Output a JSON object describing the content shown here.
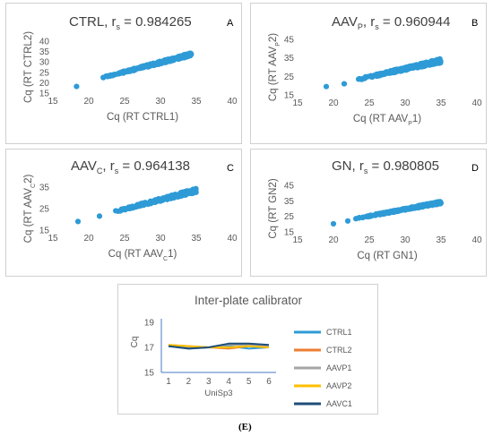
{
  "panels": [
    {
      "letter": "A",
      "title_main": "CTRL, r",
      "title_sub": "s",
      "title_value": " = 0.984265",
      "xlabel": "Cq (RT CTRL1)",
      "ylabel": "Cq (RT CTRL2)"
    },
    {
      "letter": "B",
      "title_main": "AAV",
      "title_sub": "P",
      "title_value": ", r",
      "title_sub2": "s",
      "title_value2": " = 0.960944",
      "xlabel": "Cq (RT AAV",
      "xlabel_sub": "P",
      "xlabel_end": "1)",
      "ylabel": "Cq (RT AAV",
      "ylabel_sub": "P",
      "ylabel_end": "2)"
    },
    {
      "letter": "C",
      "title_main": "AAV",
      "title_sub": "C",
      "title_value": ", r",
      "title_sub2": "s",
      "title_value2": " = 0.964138",
      "xlabel": "Cq (RT AAV",
      "xlabel_sub": "C",
      "xlabel_end": "1)",
      "ylabel": "Cq (RT AAV",
      "ylabel_sub": "C",
      "ylabel_end": "2)"
    },
    {
      "letter": "D",
      "title_main": "GN, r",
      "title_sub": "s",
      "title_value": " = 0.980805",
      "xlabel": "Cq (RT GN1)",
      "ylabel": "Cq (RT GN2)"
    }
  ],
  "caption": "(E)",
  "chart_data": [
    {
      "type": "scatter",
      "xlim": [
        15,
        40
      ],
      "ylim": [
        15,
        40
      ],
      "xticks": [
        15,
        20,
        25,
        30,
        35,
        40
      ],
      "yticks": [
        15,
        20,
        25,
        30,
        35,
        40
      ],
      "outliers": [
        [
          18.3,
          18.2
        ]
      ],
      "trend": {
        "x": [
          22,
          34.5
        ],
        "y": [
          22.5,
          33.8
        ],
        "spread": 1.0
      }
    },
    {
      "type": "scatter",
      "xlim": [
        15,
        40
      ],
      "ylim": [
        15,
        45
      ],
      "xticks": [
        15,
        20,
        25,
        30,
        35,
        40
      ],
      "yticks": [
        15,
        25,
        35,
        45
      ],
      "outliers": [
        [
          19,
          19.5
        ],
        [
          21.5,
          21
        ]
      ],
      "trend": {
        "x": [
          23,
          35
        ],
        "y": [
          23,
          33.5
        ],
        "spread": 1.4
      }
    },
    {
      "type": "scatter",
      "xlim": [
        15,
        40
      ],
      "ylim": [
        15,
        35
      ],
      "xticks": [
        15,
        20,
        25,
        30,
        35,
        40
      ],
      "yticks": [
        15,
        25,
        35
      ],
      "outliers": [
        [
          18.5,
          19
        ],
        [
          21.5,
          21.5
        ]
      ],
      "trend": {
        "x": [
          23.5,
          35
        ],
        "y": [
          23.5,
          33.5
        ],
        "spread": 1.2
      }
    },
    {
      "type": "scatter",
      "xlim": [
        15,
        40
      ],
      "ylim": [
        15,
        45
      ],
      "xticks": [
        15,
        20,
        25,
        30,
        35,
        40
      ],
      "yticks": [
        15,
        25,
        35,
        45
      ],
      "outliers": [
        [
          20,
          20.2
        ],
        [
          22,
          22
        ]
      ],
      "trend": {
        "x": [
          23,
          35
        ],
        "y": [
          23.5,
          34
        ],
        "spread": 1.0
      }
    },
    {
      "type": "line",
      "title": "Inter-plate calibrator",
      "xlabel": "UniSp3",
      "ylabel": "Cq",
      "x": [
        1,
        2,
        3,
        4,
        5,
        6
      ],
      "ylim": [
        15,
        19
      ],
      "yticks": [
        15,
        17,
        19
      ],
      "series": [
        {
          "name": "CTRL1",
          "color": "#2e9bd6",
          "values": [
            17.1,
            16.9,
            17.0,
            17.1,
            16.9,
            17.0
          ]
        },
        {
          "name": "CTRL2",
          "color": "#ed7d31",
          "values": [
            17.2,
            17.1,
            17.0,
            16.9,
            17.1,
            17.0
          ]
        },
        {
          "name": "AAVP1",
          "color": "#a5a5a5",
          "values": [
            17.1,
            17.0,
            17.0,
            17.2,
            17.2,
            17.1
          ]
        },
        {
          "name": "AAVP2",
          "color": "#ffc000",
          "values": [
            17.2,
            17.1,
            17.0,
            17.0,
            17.1,
            17.0
          ]
        },
        {
          "name": "AAVC1",
          "color": "#1f4e79",
          "values": [
            17.1,
            16.9,
            17.0,
            17.3,
            17.3,
            17.2
          ]
        }
      ]
    }
  ]
}
